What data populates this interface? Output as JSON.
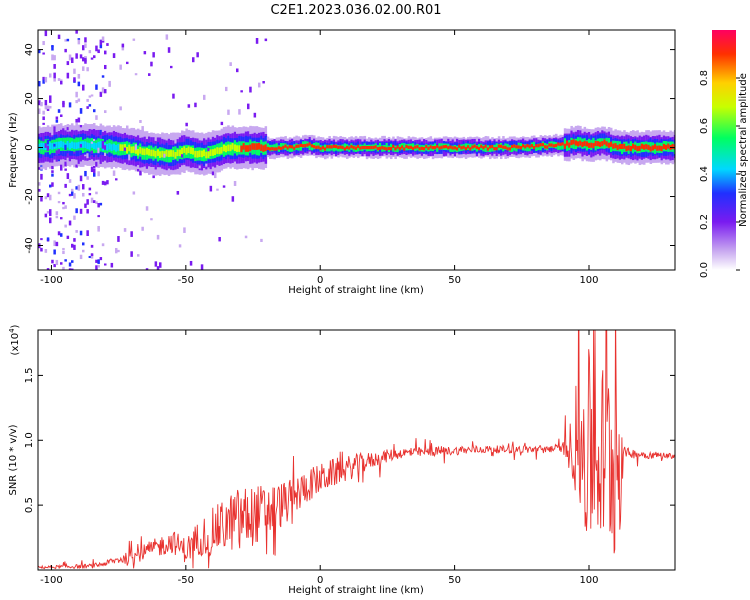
{
  "title": "C2E1.2023.036.02.00.R01",
  "chart_data": [
    {
      "type": "heatmap",
      "xlabel": "Height of straight line (km)",
      "ylabel": "Frequency (Hz)",
      "xlim": [
        -105,
        132
      ],
      "ylim": [
        -50,
        48
      ],
      "xticks": [
        -100,
        -50,
        0,
        50,
        100
      ],
      "yticks": [
        -40,
        -20,
        0,
        20,
        40
      ],
      "colorbar": {
        "label": "Normalized spectral amplitude",
        "range": [
          0.0,
          1.0
        ],
        "ticks": [
          "0.0",
          "0.2",
          "0.4",
          "0.6",
          "0.8"
        ],
        "colormap": [
          "#ffffff",
          "#c8a8f0",
          "#7a1bf0",
          "#2030ff",
          "#00d8ff",
          "#00ff60",
          "#c8ff00",
          "#ffd000",
          "#ff3000",
          "#ff0060"
        ]
      },
      "ridge": {
        "x": [
          -105,
          -95,
          -85,
          -75,
          -65,
          -55,
          -50,
          -45,
          -40,
          -35,
          -30,
          -20,
          -10,
          -5,
          0,
          10,
          30,
          50,
          70,
          90,
          95,
          100,
          105,
          110,
          132
        ],
        "y": [
          0,
          1,
          1,
          0,
          -2,
          -3,
          -1,
          -3,
          -2,
          0,
          0,
          0,
          0,
          1,
          0,
          0,
          0,
          0,
          0,
          1,
          2,
          1,
          2,
          0,
          0
        ]
      }
    },
    {
      "type": "line",
      "xlabel": "Height of straight line (km)",
      "ylabel": "SNR (10 * v/v)",
      "y_scale_label": "(x10",
      "y_scale_exp": "4",
      "y_scale_close": ")",
      "xlim": [
        -105,
        132
      ],
      "ylim": [
        0,
        1.85
      ],
      "xticks": [
        -100,
        -50,
        0,
        50,
        100
      ],
      "yticks": [
        "0.5",
        "1.0",
        "1.5"
      ],
      "ytick_values": [
        0.5,
        1.0,
        1.5
      ],
      "color": "#e8322f",
      "envelope": {
        "x": [
          -105,
          -85,
          -80,
          -75,
          -70,
          -60,
          -55,
          -50,
          -45,
          -40,
          -35,
          -30,
          -25,
          -20,
          -15,
          -10,
          -5,
          0,
          5,
          10,
          15,
          20,
          25,
          30,
          40,
          50,
          60,
          70,
          80,
          90,
          95,
          100,
          105,
          110,
          112,
          115,
          120,
          132
        ],
        "y": [
          0.02,
          0.03,
          0.05,
          0.08,
          0.1,
          0.18,
          0.22,
          0.15,
          0.25,
          0.3,
          0.35,
          0.4,
          0.42,
          0.45,
          0.5,
          0.55,
          0.65,
          0.7,
          0.75,
          0.78,
          0.82,
          0.85,
          0.88,
          0.9,
          0.91,
          0.92,
          0.93,
          0.93,
          0.93,
          0.94,
          0.95,
          0.92,
          0.88,
          0.9,
          0.92,
          0.9,
          0.89,
          0.88
        ]
      },
      "noise_amplitude": {
        "x": [
          -105,
          -80,
          -60,
          -50,
          -40,
          -30,
          -20,
          -10,
          0,
          10,
          20,
          30,
          60,
          90,
          94,
          98,
          105,
          111,
          113,
          132
        ],
        "y": [
          0.01,
          0.02,
          0.08,
          0.1,
          0.18,
          0.25,
          0.22,
          0.15,
          0.12,
          0.1,
          0.06,
          0.04,
          0.03,
          0.03,
          0.25,
          0.8,
          0.75,
          0.9,
          0.04,
          0.02
        ]
      }
    }
  ]
}
